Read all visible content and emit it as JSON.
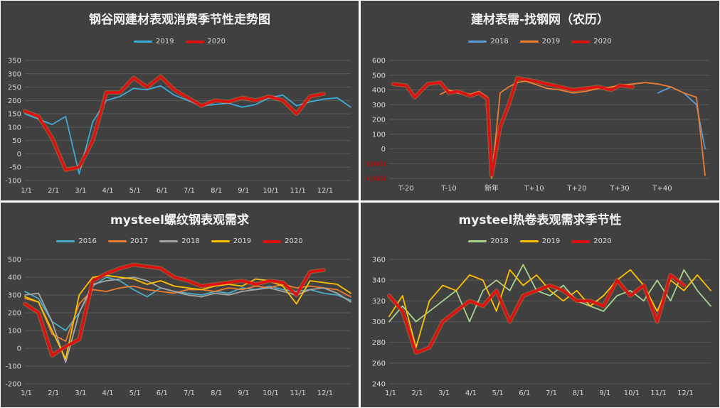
{
  "chart_data": [
    {
      "type": "line",
      "title": "钢谷网建材表观消费季节性走势图",
      "xlabel": "",
      "ylabel": "",
      "ylim": [
        -100,
        350
      ],
      "yticks": [
        "-100",
        "-50",
        "0",
        "50",
        "100",
        "150",
        "200",
        "250",
        "300",
        "350"
      ],
      "categories": [
        "1/1",
        "2/1",
        "3/1",
        "4/1",
        "5/1",
        "6/1",
        "7/1",
        "8/1",
        "9/1",
        "10/1",
        "11/1",
        "12/1"
      ],
      "x": [
        0,
        0.5,
        1,
        1.5,
        2,
        2.5,
        3,
        3.5,
        4,
        4.5,
        5,
        5.5,
        6,
        6.5,
        7,
        7.5,
        8,
        8.5,
        9,
        9.5,
        10,
        10.5,
        11,
        11.5,
        12
      ],
      "legend_position": "top",
      "grid": true,
      "series": [
        {
          "name": "2019",
          "color": "#3fa9d6",
          "values": [
            150,
            130,
            110,
            140,
            -75,
            120,
            200,
            215,
            245,
            240,
            255,
            220,
            200,
            180,
            185,
            190,
            175,
            185,
            210,
            220,
            180,
            195,
            205,
            210,
            175
          ]
        },
        {
          "name": "2020",
          "color": "#e01010",
          "values": [
            160,
            140,
            60,
            -60,
            -50,
            50,
            230,
            230,
            285,
            250,
            290,
            240,
            210,
            180,
            200,
            195,
            210,
            200,
            215,
            200,
            150,
            215,
            225,
            null,
            null
          ]
        }
      ]
    },
    {
      "type": "line",
      "title": "建材表需-找钢网（农历）",
      "xlabel": "",
      "ylabel": "",
      "ylim": [
        -200,
        600
      ],
      "yticks": [
        "(200)",
        "(100)",
        "0",
        "100",
        "200",
        "300",
        "400",
        "500",
        "600"
      ],
      "categories": [
        "T-20",
        "T-10",
        "新年",
        "T+10",
        "T+20",
        "T+30",
        "T+40"
      ],
      "x": [
        -23,
        -20,
        -18,
        -15,
        -12,
        -10,
        -8,
        -5,
        -3,
        -1,
        0,
        2,
        4,
        6,
        8,
        10,
        13,
        16,
        19,
        22,
        25,
        28,
        30,
        33,
        36,
        39,
        42,
        45,
        48,
        50
      ],
      "legend_position": "top",
      "grid": true,
      "series": [
        {
          "name": "2018",
          "color": "#5b9bd5",
          "values": [
            null,
            null,
            null,
            null,
            null,
            null,
            null,
            null,
            null,
            null,
            null,
            null,
            null,
            null,
            null,
            null,
            null,
            null,
            null,
            null,
            null,
            null,
            null,
            null,
            null,
            380,
            420,
            380,
            300,
            0
          ]
        },
        {
          "name": "2019",
          "color": "#ed7d31",
          "values": [
            null,
            null,
            null,
            null,
            370,
            400,
            380,
            370,
            390,
            350,
            -200,
            380,
            420,
            450,
            460,
            440,
            410,
            400,
            380,
            390,
            410,
            420,
            430,
            440,
            450,
            440,
            420,
            380,
            350,
            -180
          ]
        },
        {
          "name": "2020",
          "color": "#e01010",
          "values": [
            440,
            430,
            350,
            440,
            450,
            380,
            390,
            360,
            380,
            340,
            -180,
            150,
            300,
            480,
            470,
            460,
            440,
            420,
            400,
            410,
            420,
            400,
            430,
            420,
            null,
            null,
            null,
            null,
            null,
            null
          ]
        }
      ]
    },
    {
      "type": "line",
      "title": "mysteel螺纹钢表观需求",
      "xlabel": "",
      "ylabel": "",
      "ylim": [
        -200,
        500
      ],
      "yticks": [
        "-200",
        "-100",
        "0",
        "100",
        "200",
        "300",
        "400",
        "500"
      ],
      "categories": [
        "1/1",
        "2/1",
        "3/1",
        "4/1",
        "5/1",
        "6/1",
        "7/1",
        "8/1",
        "9/1",
        "10/1",
        "11/1",
        "12/1"
      ],
      "x": [
        0,
        0.5,
        1,
        1.5,
        2,
        2.5,
        3,
        3.5,
        4,
        4.5,
        5,
        5.5,
        6,
        6.5,
        7,
        7.5,
        8,
        8.5,
        9,
        9.5,
        10,
        10.5,
        11,
        11.5,
        12
      ],
      "legend_position": "top",
      "grid": true,
      "series": [
        {
          "name": "2016",
          "color": "#4aacc6",
          "values": [
            320,
            280,
            150,
            100,
            200,
            350,
            400,
            380,
            330,
            290,
            340,
            320,
            310,
            300,
            320,
            310,
            340,
            330,
            350,
            330,
            320,
            330,
            310,
            300,
            270
          ]
        },
        {
          "name": "2017",
          "color": "#ed7d31",
          "values": [
            280,
            260,
            80,
            40,
            250,
            330,
            320,
            340,
            350,
            330,
            320,
            310,
            330,
            330,
            320,
            340,
            330,
            350,
            340,
            360,
            340,
            350,
            340,
            330,
            290
          ]
        },
        {
          "name": "2018",
          "color": "#a5a5a5",
          "values": [
            300,
            310,
            150,
            -80,
            200,
            360,
            380,
            390,
            400,
            380,
            340,
            320,
            300,
            290,
            310,
            300,
            320,
            330,
            340,
            320,
            300,
            330,
            340,
            310,
            260
          ]
        },
        {
          "name": "2019",
          "color": "#ffc000",
          "values": [
            290,
            260,
            100,
            -60,
            300,
            400,
            410,
            400,
            390,
            360,
            380,
            350,
            340,
            330,
            350,
            360,
            350,
            390,
            380,
            350,
            250,
            380,
            370,
            360,
            310
          ]
        },
        {
          "name": "2020",
          "color": "#e01010",
          "values": [
            250,
            200,
            -40,
            10,
            50,
            380,
            420,
            450,
            470,
            460,
            450,
            400,
            380,
            350,
            360,
            370,
            380,
            360,
            380,
            370,
            300,
            430,
            440,
            null,
            null
          ]
        }
      ]
    },
    {
      "type": "line",
      "title": "mysteel热卷表观需求季节性",
      "xlabel": "",
      "ylabel": "",
      "ylim": [
        240,
        360
      ],
      "yticks": [
        "240",
        "260",
        "280",
        "300",
        "320",
        "340",
        "360"
      ],
      "categories": [
        "1/1",
        "2/1",
        "3/1",
        "4/1",
        "5/1",
        "6/1",
        "7/1",
        "8/1",
        "9/1",
        "10/1",
        "11/1",
        "12/1"
      ],
      "x": [
        0,
        0.5,
        1,
        1.5,
        2,
        2.5,
        3,
        3.5,
        4,
        4.5,
        5,
        5.5,
        6,
        6.5,
        7,
        7.5,
        8,
        8.5,
        9,
        9.5,
        10,
        10.5,
        11,
        11.5,
        12
      ],
      "legend_position": "top",
      "grid": true,
      "series": [
        {
          "name": "2018",
          "color": "#a9d18e",
          "values": [
            300,
            315,
            300,
            310,
            320,
            330,
            300,
            330,
            340,
            330,
            355,
            330,
            325,
            335,
            320,
            315,
            310,
            325,
            330,
            320,
            340,
            320,
            350,
            330,
            315
          ]
        },
        {
          "name": "2019",
          "color": "#ffc000",
          "values": [
            305,
            325,
            275,
            320,
            335,
            330,
            345,
            340,
            310,
            350,
            335,
            345,
            330,
            320,
            330,
            315,
            325,
            340,
            350,
            335,
            310,
            340,
            330,
            345,
            330
          ]
        },
        {
          "name": "2020",
          "color": "#e01010",
          "values": [
            325,
            310,
            270,
            275,
            300,
            310,
            320,
            315,
            330,
            300,
            325,
            330,
            335,
            330,
            320,
            320,
            315,
            340,
            325,
            335,
            300,
            345,
            335,
            null,
            null
          ]
        }
      ]
    }
  ]
}
